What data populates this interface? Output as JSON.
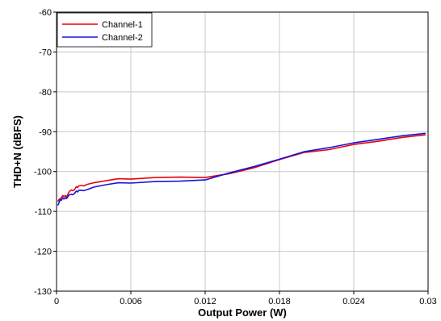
{
  "chart_data": {
    "type": "line",
    "title": "",
    "xlabel": "Output Power (W)",
    "ylabel": "THD+N (dBFS)",
    "xlim": [
      0,
      0.03
    ],
    "ylim": [
      -130,
      -60
    ],
    "xticks": [
      0,
      0.006,
      0.012,
      0.018,
      0.024,
      0.03
    ],
    "xtick_labels": [
      "0",
      "0.006",
      "0.012",
      "0.018",
      "0.024",
      "0.03"
    ],
    "yticks": [
      -60,
      -70,
      -80,
      -90,
      -100,
      -110,
      -120,
      -130
    ],
    "ytick_labels": [
      "-60",
      "-70",
      "-80",
      "-90",
      "-100",
      "-110",
      "-120",
      "-130"
    ],
    "grid": true,
    "legend_position": "top-left",
    "series": [
      {
        "name": "Channel-1",
        "color": "#e8000b",
        "x": [
          0.0001,
          0.0002,
          0.0003,
          0.0004,
          0.0005,
          0.0006,
          0.0007,
          0.0008,
          0.0009,
          0.001,
          0.0011,
          0.0012,
          0.0013,
          0.0014,
          0.0015,
          0.0016,
          0.0017,
          0.0018,
          0.002,
          0.0022,
          0.0025,
          0.003,
          0.004,
          0.005,
          0.006,
          0.008,
          0.01,
          0.012,
          0.014,
          0.016,
          0.018,
          0.02,
          0.022,
          0.024,
          0.026,
          0.028,
          0.0298
        ],
        "y": [
          -107.5,
          -107.0,
          -106.8,
          -106.5,
          -106.0,
          -106.3,
          -106.0,
          -106.4,
          -105.8,
          -105.2,
          -104.8,
          -104.6,
          -104.8,
          -104.7,
          -104.3,
          -103.8,
          -104.0,
          -103.6,
          -103.5,
          -103.6,
          -103.2,
          -102.8,
          -102.3,
          -101.8,
          -101.9,
          -101.5,
          -101.4,
          -101.5,
          -100.5,
          -99.0,
          -97.0,
          -95.2,
          -94.5,
          -93.2,
          -92.4,
          -91.4,
          -90.8
        ]
      },
      {
        "name": "Channel-2",
        "color": "#1414dc",
        "x": [
          0.0001,
          0.0002,
          0.0003,
          0.0004,
          0.0005,
          0.0006,
          0.0007,
          0.0008,
          0.0009,
          0.001,
          0.0011,
          0.0012,
          0.0013,
          0.0014,
          0.0015,
          0.0016,
          0.0017,
          0.0018,
          0.002,
          0.0022,
          0.0025,
          0.003,
          0.004,
          0.005,
          0.006,
          0.008,
          0.01,
          0.012,
          0.014,
          0.016,
          0.018,
          0.02,
          0.022,
          0.024,
          0.026,
          0.028,
          0.0298
        ],
        "y": [
          -108.5,
          -107.8,
          -107.0,
          -107.2,
          -106.6,
          -106.9,
          -106.6,
          -106.8,
          -106.4,
          -105.9,
          -105.8,
          -105.7,
          -105.8,
          -105.6,
          -105.3,
          -104.9,
          -105.1,
          -104.7,
          -104.7,
          -104.8,
          -104.5,
          -103.9,
          -103.3,
          -102.8,
          -102.9,
          -102.5,
          -102.4,
          -102.1,
          -100.3,
          -98.7,
          -96.9,
          -95.0,
          -94.0,
          -92.8,
          -91.9,
          -91.0,
          -90.4
        ]
      }
    ]
  }
}
